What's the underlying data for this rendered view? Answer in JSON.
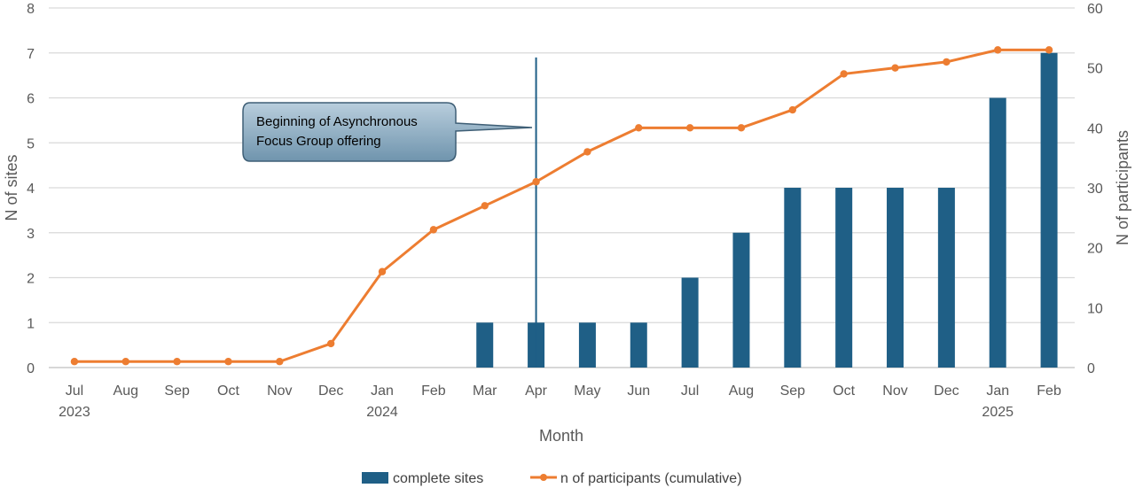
{
  "chart_data": {
    "type": "bar",
    "categories": [
      "Jul",
      "Aug",
      "Sep",
      "Oct",
      "Nov",
      "Dec",
      "Jan",
      "Feb",
      "Mar",
      "Apr",
      "May",
      "Jun",
      "Jul",
      "Aug",
      "Sep",
      "Oct",
      "Nov",
      "Dec",
      "Jan",
      "Feb"
    ],
    "year_labels": [
      "2023",
      "",
      "",
      "",
      "",
      "",
      "2024",
      "",
      "",
      "",
      "",
      "",
      "",
      "",
      "",
      "",
      "",
      "",
      "2025",
      ""
    ],
    "series": [
      {
        "name": "complete sites",
        "type": "bar",
        "axis": "left",
        "color": "#1f5f86",
        "values": [
          0,
          0,
          0,
          0,
          0,
          0,
          0,
          0,
          1,
          1,
          1,
          1,
          2,
          3,
          4,
          4,
          4,
          4,
          6,
          7
        ]
      },
      {
        "name": "n of participants (cumulative)",
        "type": "line",
        "axis": "right",
        "color": "#ed7d31",
        "values": [
          1,
          1,
          1,
          1,
          1,
          4,
          16,
          23,
          27,
          31,
          36,
          40,
          40,
          40,
          43,
          49,
          50,
          51,
          53,
          53
        ]
      }
    ],
    "xlabel": "Month",
    "ylabel_left": "N of sites",
    "ylabel_right": "N of participants",
    "ylim_left": [
      0,
      8
    ],
    "yticks_left": [
      0,
      1,
      2,
      3,
      4,
      5,
      6,
      7,
      8
    ],
    "ylim_right": [
      0,
      60
    ],
    "yticks_right": [
      0,
      10,
      20,
      30,
      40,
      50,
      60
    ],
    "grid": true,
    "legend_position": "bottom-center",
    "annotation": {
      "text_lines": [
        "Beginning of Asynchronous",
        "Focus Group offering"
      ],
      "marker_category_index": 9,
      "marker_top_value_left": 6.9,
      "color": "#1f5f86"
    }
  }
}
